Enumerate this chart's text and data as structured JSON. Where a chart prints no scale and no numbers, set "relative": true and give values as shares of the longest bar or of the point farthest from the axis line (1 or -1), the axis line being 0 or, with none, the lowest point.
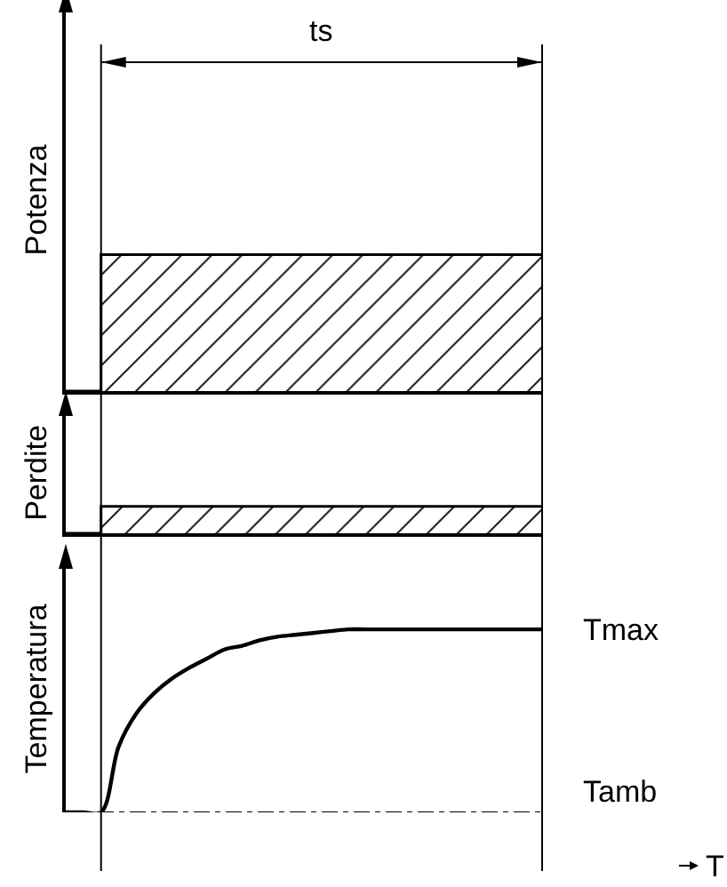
{
  "chart_data": [
    {
      "type": "area",
      "ylabel": "Potenza",
      "relative": true,
      "color": "#000000",
      "annotations": [
        "ts"
      ],
      "categories": [
        null,
        null,
        null,
        null,
        null,
        null,
        null,
        null,
        null,
        null,
        null,
        null,
        null,
        null,
        null,
        null,
        null,
        null,
        null,
        null,
        null,
        null,
        null,
        null,
        null,
        null,
        null,
        null
      ],
      "values": [
        0,
        0,
        1,
        1,
        1,
        1,
        1,
        1,
        1,
        1,
        1,
        1,
        1,
        1,
        1,
        1,
        1,
        1,
        1,
        1,
        1,
        1,
        1,
        1,
        1,
        1,
        1,
        1
      ]
    },
    {
      "type": "area",
      "ylabel": "Perdite",
      "relative": true,
      "color": "#000000",
      "categories": [
        null,
        null,
        null,
        null,
        null,
        null,
        null,
        null,
        null,
        null,
        null,
        null,
        null,
        null,
        null,
        null,
        null,
        null,
        null,
        null,
        null,
        null,
        null,
        null,
        null,
        null,
        null,
        null
      ],
      "values": [
        0,
        0,
        1,
        1,
        1,
        1,
        1,
        1,
        1,
        1,
        1,
        1,
        1,
        1,
        1,
        1,
        1,
        1,
        1,
        1,
        1,
        1,
        1,
        1,
        1,
        1,
        1,
        1
      ]
    },
    {
      "type": "line",
      "ylabel": "Temperatura",
      "xlabel": "T",
      "relative": true,
      "color": "#000000",
      "marker": "none",
      "line_style": "solid",
      "categories": [
        null,
        null,
        null,
        null,
        null,
        null,
        null,
        null,
        null,
        null,
        null,
        null,
        null,
        null,
        null,
        null,
        null,
        null,
        null,
        null,
        null,
        null,
        null,
        null,
        null,
        null,
        null,
        null
      ],
      "values": [
        0,
        0,
        0,
        0.36,
        0.54,
        0.65,
        0.73,
        0.79,
        0.84,
        0.89,
        0.91,
        0.94,
        0.96,
        0.97,
        0.98,
        0.99,
        1,
        1,
        1,
        1,
        1,
        1,
        1,
        1,
        1,
        1,
        1,
        1
      ],
      "annotations": [
        "Tmax"
      ],
      "ref_lines": [
        {
          "axis": "y",
          "value": 0,
          "label": "Tamb",
          "line_style": "dashed",
          "color": "#000000"
        }
      ]
    }
  ]
}
